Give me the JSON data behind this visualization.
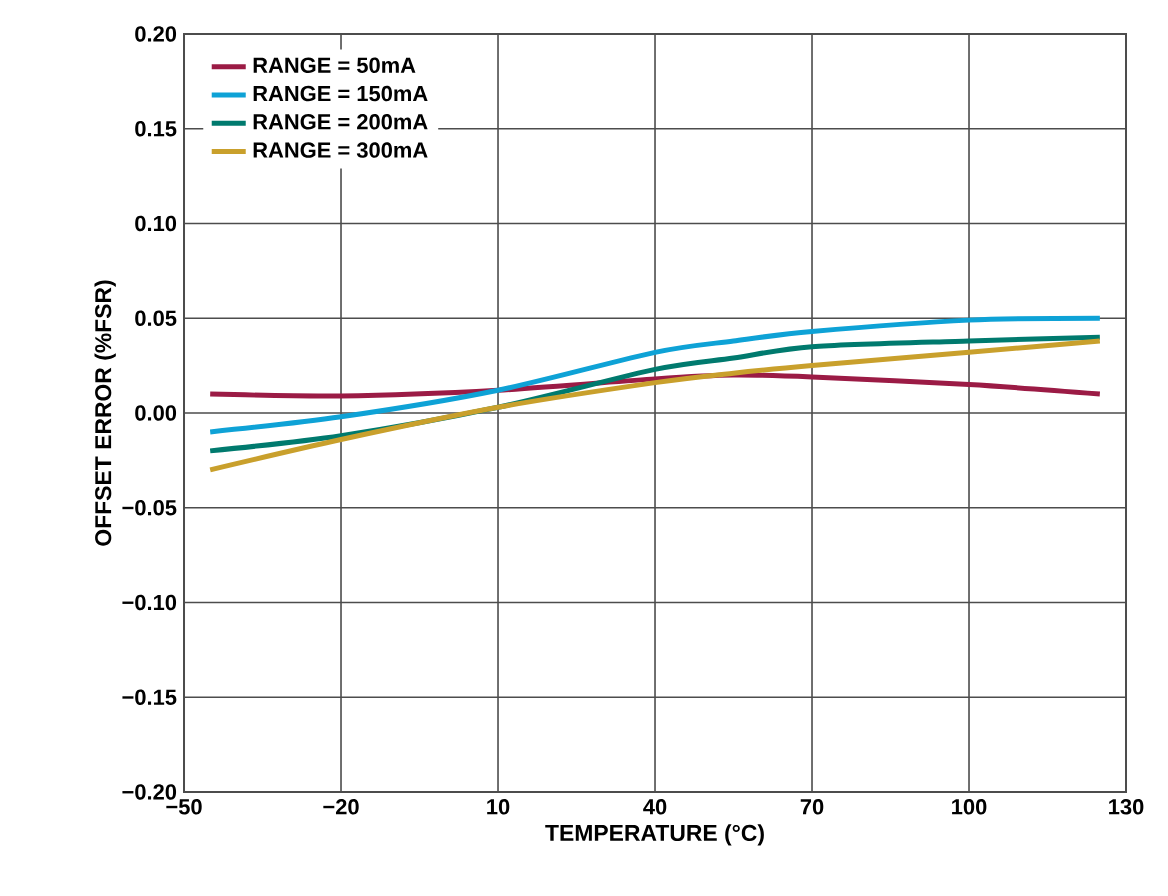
{
  "chart_data": {
    "type": "line",
    "xlabel": "TEMPERATURE (°C)",
    "ylabel": "OFFSET ERROR (%FSR)",
    "x": [
      -45,
      -20,
      10,
      40,
      55,
      70,
      100,
      125
    ],
    "series": [
      {
        "name": "RANGE = 50mA",
        "color": "#9b1b45",
        "values": [
          0.01,
          0.009,
          0.012,
          0.018,
          0.02,
          0.019,
          0.015,
          0.01
        ]
      },
      {
        "name": "RANGE = 150mA",
        "color": "#0ea2d6",
        "values": [
          -0.01,
          -0.002,
          0.012,
          0.032,
          0.038,
          0.043,
          0.049,
          0.05
        ]
      },
      {
        "name": "RANGE = 200mA",
        "color": "#007a6e",
        "values": [
          -0.02,
          -0.012,
          0.003,
          0.023,
          0.029,
          0.035,
          0.038,
          0.04
        ]
      },
      {
        "name": "RANGE = 300mA",
        "color": "#c9a02c",
        "values": [
          -0.03,
          -0.014,
          0.003,
          0.016,
          0.021,
          0.025,
          0.032,
          0.038
        ]
      }
    ],
    "xlim": [
      -50,
      130
    ],
    "ylim": [
      -0.2,
      0.2
    ],
    "xticks": [
      {
        "value": -50,
        "label": "−50"
      },
      {
        "value": -20,
        "label": "−20"
      },
      10,
      40,
      70,
      100,
      130
    ],
    "yticks": [
      {
        "value": -0.2,
        "label": "−0.20"
      },
      {
        "value": -0.15,
        "label": "−0.15"
      },
      {
        "value": -0.1,
        "label": "−0.10"
      },
      {
        "value": -0.05,
        "label": "−0.05"
      },
      {
        "value": 0,
        "label": "0.00"
      },
      {
        "value": 0.05,
        "label": "0.05"
      },
      {
        "value": 0.1,
        "label": "0.10"
      },
      {
        "value": 0.15,
        "label": "0.15"
      },
      {
        "value": 0.2,
        "label": "0.20"
      }
    ],
    "grid": true,
    "legend": "top left",
    "marker": "none",
    "line_style": "solid"
  }
}
